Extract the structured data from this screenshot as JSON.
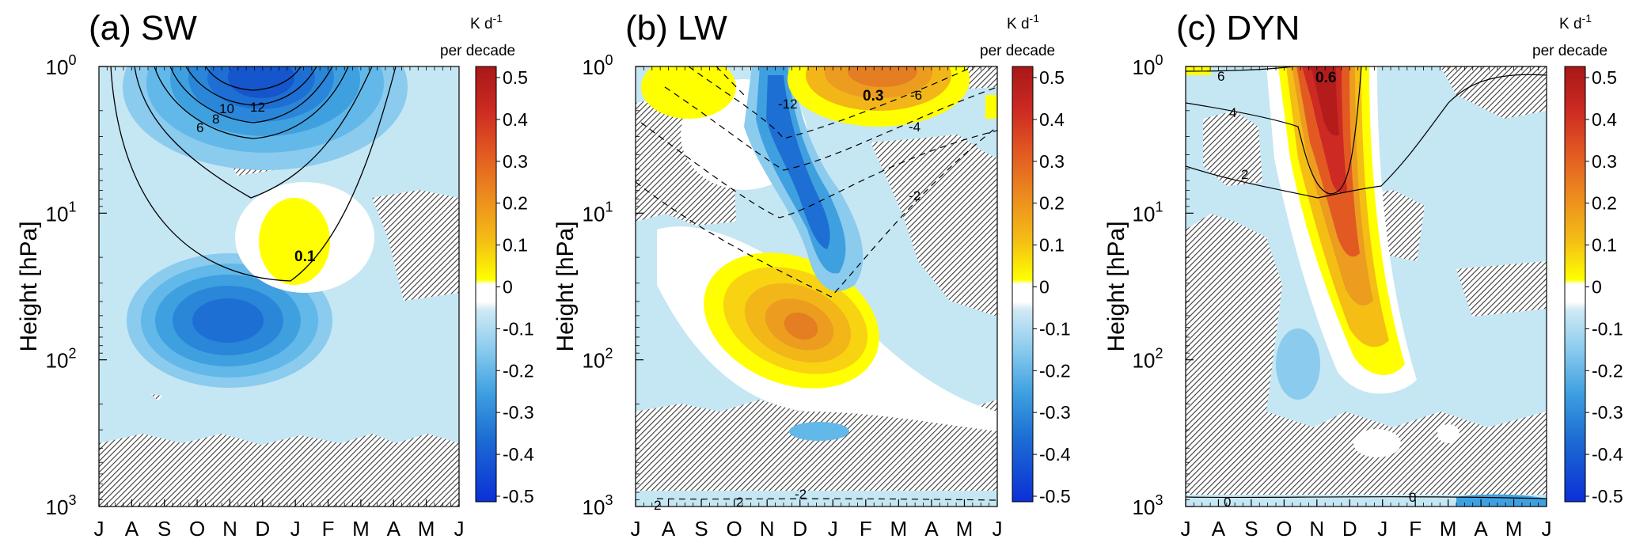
{
  "figure": {
    "panels": [
      {
        "id": "sw",
        "title": "(a) SW"
      },
      {
        "id": "lw",
        "title": "(b) LW"
      },
      {
        "id": "dyn",
        "title": "(c) DYN"
      }
    ],
    "ylabel": "Height [hPa]",
    "colorbar": {
      "unit_main": "K d",
      "unit_sup": "-1",
      "unit_sub": "per decade",
      "ticks": [
        "0.5",
        "0.4",
        "0.3",
        "0.2",
        "0.1",
        "0",
        "-0.1",
        "-0.2",
        "-0.3",
        "-0.4",
        "-0.5"
      ]
    }
  },
  "chart_data": [
    {
      "type": "heatmap",
      "title": "(a) SW",
      "xlabel": "",
      "ylabel": "Height [hPa]",
      "x_ticks": [
        "J",
        "A",
        "S",
        "O",
        "N",
        "D",
        "J",
        "F",
        "M",
        "A",
        "M",
        "J"
      ],
      "y_ticks": [
        {
          "base": "10",
          "exp": "0"
        },
        {
          "base": "10",
          "exp": "1"
        },
        {
          "base": "10",
          "exp": "2"
        },
        {
          "base": "10",
          "exp": "3"
        }
      ],
      "y_scale": "log",
      "y_range": [
        1000,
        1
      ],
      "colorbar_range": [
        -0.5,
        0.5
      ],
      "colorbar_unit": "K d-1 per decade",
      "peak_label": "0.1",
      "contour_labels": [
        "6",
        "8",
        "10",
        "12"
      ],
      "features": [
        {
          "sign": "negative",
          "peak": -0.3,
          "month_center": "D",
          "hPa_center": 1.5
        },
        {
          "sign": "negative",
          "peak": -0.25,
          "month_center": "N",
          "hPa_center": 50
        },
        {
          "sign": "positive",
          "peak": 0.1,
          "month_center": "J",
          "hPa_center": 20
        }
      ],
      "hatching": "regions not statistically significant"
    },
    {
      "type": "heatmap",
      "title": "(b) LW",
      "xlabel": "",
      "ylabel": "Height [hPa]",
      "x_ticks": [
        "J",
        "A",
        "S",
        "O",
        "N",
        "D",
        "J",
        "F",
        "M",
        "A",
        "M",
        "J"
      ],
      "y_ticks": [
        {
          "base": "10",
          "exp": "0"
        },
        {
          "base": "10",
          "exp": "1"
        },
        {
          "base": "10",
          "exp": "2"
        },
        {
          "base": "10",
          "exp": "3"
        }
      ],
      "y_scale": "log",
      "y_range": [
        1000,
        1
      ],
      "colorbar_range": [
        -0.5,
        0.5
      ],
      "colorbar_unit": "K d-1 per decade",
      "peak_label": "0.3",
      "contour_labels": [
        "-12",
        "-6",
        "-4",
        "-2",
        "2",
        "2",
        "-2"
      ],
      "features": [
        {
          "sign": "positive",
          "peak": 0.3,
          "month_center": "F",
          "hPa_center": 1.5
        },
        {
          "sign": "negative",
          "peak": -0.35,
          "month_center": "D",
          "hPa_center": 10
        },
        {
          "sign": "positive",
          "peak": 0.3,
          "month_center": "D",
          "hPa_center": 70
        }
      ],
      "hatching": "regions not statistically significant"
    },
    {
      "type": "heatmap",
      "title": "(c) DYN",
      "xlabel": "",
      "ylabel": "Height [hPa]",
      "x_ticks": [
        "J",
        "A",
        "S",
        "O",
        "N",
        "D",
        "J",
        "F",
        "M",
        "A",
        "M",
        "J"
      ],
      "y_ticks": [
        {
          "base": "10",
          "exp": "0"
        },
        {
          "base": "10",
          "exp": "1"
        },
        {
          "base": "10",
          "exp": "2"
        },
        {
          "base": "10",
          "exp": "3"
        }
      ],
      "y_scale": "log",
      "y_range": [
        1000,
        1
      ],
      "colorbar_range": [
        -0.5,
        0.5
      ],
      "colorbar_unit": "K d-1 per decade",
      "peak_label": "0.6",
      "contour_labels": [
        "6",
        "4",
        "2",
        "0",
        "0"
      ],
      "features": [
        {
          "sign": "positive",
          "peak": 0.6,
          "month_center": "N",
          "hPa_center": 1.2
        },
        {
          "sign": "positive",
          "peak": 0.25,
          "month_center": "D",
          "hPa_center": 30
        },
        {
          "sign": "negative",
          "peak": -0.1,
          "month_center": "O",
          "hPa_center": 150
        }
      ],
      "hatching": "regions not statistically significant"
    }
  ],
  "colors": {
    "scale": [
      "#0b2fd6",
      "#1556cc",
      "#1e6fd3",
      "#2a86d9",
      "#3fa0e0",
      "#62b8e8",
      "#8acbee",
      "#b8e1f2",
      "#ffffff",
      "#ffff00",
      "#f8d312",
      "#f2b619",
      "#ec9c1f",
      "#e57d22",
      "#dc5c23",
      "#cf3c22",
      "#c01f1f",
      "#a81818"
    ]
  }
}
